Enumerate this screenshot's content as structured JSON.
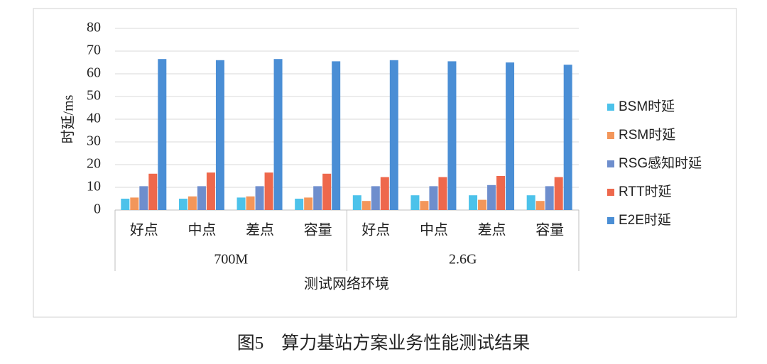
{
  "chart_data": {
    "type": "bar",
    "caption": "图5　算力基站方案业务性能测试结果",
    "x_label": "测试网络环境",
    "y_label": "时延/ms",
    "groups": [
      {
        "name": "700M",
        "categories": [
          "好点",
          "中点",
          "差点",
          "容量"
        ]
      },
      {
        "name": "2.6G",
        "categories": [
          "好点",
          "中点",
          "差点",
          "容量"
        ]
      }
    ],
    "series": [
      {
        "name": "BSM时延",
        "color": "#4cc2ea",
        "values": [
          5,
          5,
          5.5,
          5,
          6.5,
          6.5,
          6.5,
          6.5
        ]
      },
      {
        "name": "RSM时延",
        "color": "#f3965a",
        "values": [
          5.5,
          6,
          6,
          5.5,
          4,
          4,
          4.5,
          4
        ]
      },
      {
        "name": "RSG感知时延",
        "color": "#6e8ecd",
        "values": [
          10.5,
          10.5,
          10.5,
          10.5,
          10.5,
          10.5,
          11,
          10.5
        ]
      },
      {
        "name": "RTT时延",
        "color": "#ee684c",
        "values": [
          16,
          16.5,
          16.5,
          16,
          14.5,
          14.5,
          15,
          14.5
        ]
      },
      {
        "name": "E2E时延",
        "color": "#4a8ed5",
        "values": [
          66.5,
          66,
          66.5,
          65.5,
          66,
          65.5,
          65,
          64
        ]
      }
    ],
    "ylim": [
      0,
      80
    ],
    "yticks": [
      0,
      10,
      20,
      30,
      40,
      50,
      60,
      70,
      80
    ],
    "grid": true,
    "legend": "right"
  }
}
